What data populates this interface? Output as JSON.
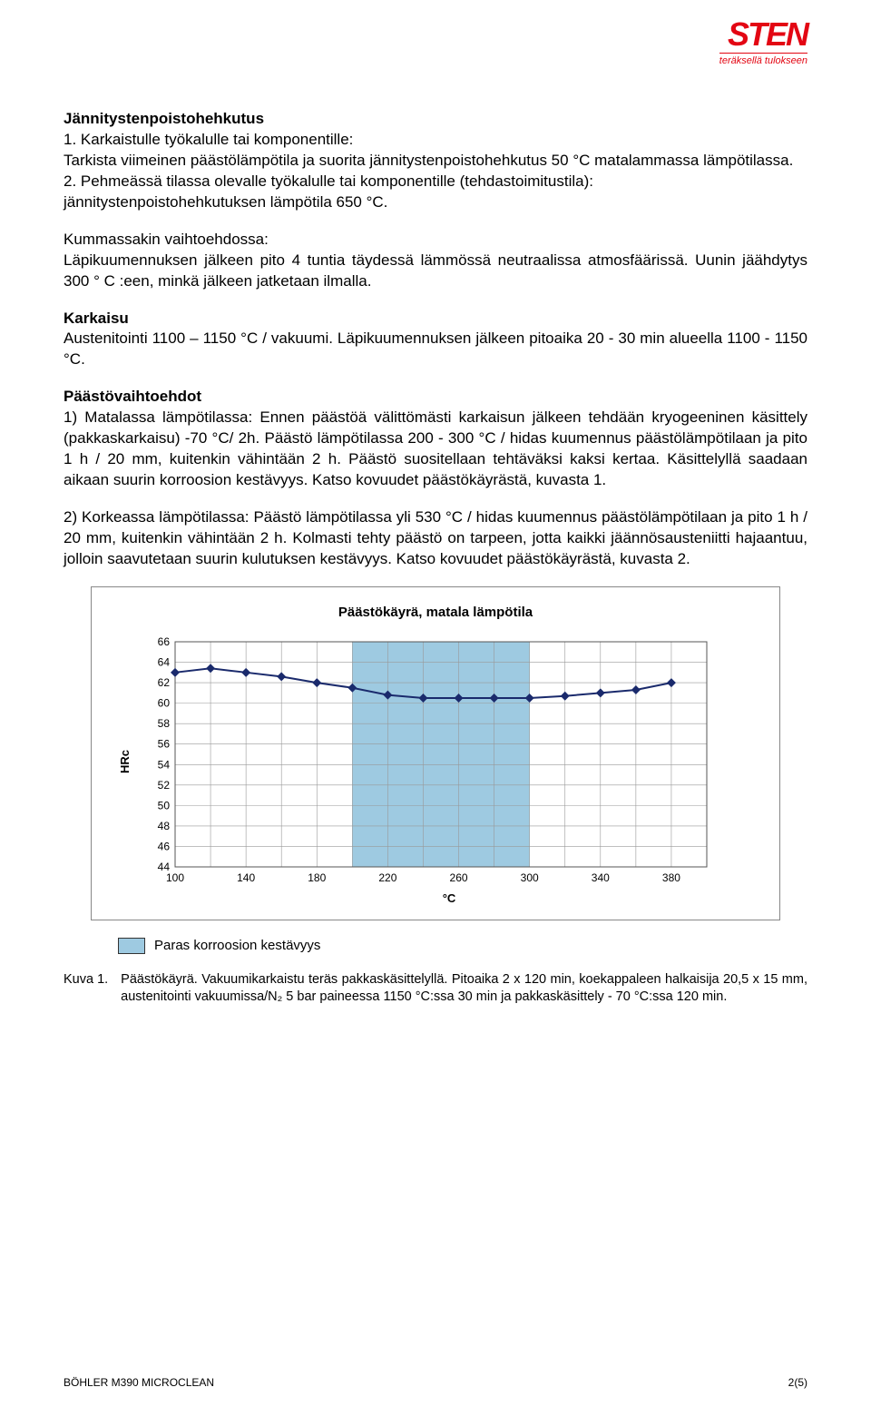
{
  "logo": {
    "main": "STEN",
    "sub": "teräksellä tulokseen"
  },
  "headings": {
    "jp": "Jännitystenpoistohehkutus",
    "karkaisu": "Karkaisu",
    "paasto": "Päästövaihtoehdot"
  },
  "para": {
    "jp1_a": "1. Karkaistulle työkalulle tai komponentille:",
    "jp1_b": "Tarkista viimeinen päästölämpötila ja suorita jännitystenpoistohehkutus 50 °C matalammassa lämpötilassa.",
    "jp2_a": "2. Pehmeässä tilassa olevalle työkalulle tai komponentille (tehdastoimitustila):",
    "jp2_b": "jännitystenpoistohehkutuksen lämpötila 650 °C.",
    "jp3_a": "Kummassakin vaihtoehdossa:",
    "jp3_b": "Läpikuumennuksen jälkeen pito 4 tuntia täydessä lämmössä neutraalissa atmosfäärissä. Uunin jäähdytys 300 ° C :een, minkä jälkeen jatketaan ilmalla.",
    "karkaisu": "Austenitointi 1100 – 1150 °C / vakuumi. Läpikuumennuksen jälkeen pitoaika 20 - 30 min alueella 1100 - 1150 °C.",
    "paasto1": "1) Matalassa lämpötilassa: Ennen päästöä välittömästi karkaisun jälkeen tehdään kryogeeninen käsittely (pakkaskarkaisu) -70 °C/ 2h. Päästö lämpötilassa 200 - 300 °C / hidas kuumennus päästölämpötilaan ja pito 1 h / 20 mm, kuitenkin vähintään 2 h. Päästö suositellaan tehtäväksi kaksi kertaa. Käsittelyllä saadaan aikaan suurin korroosion kestävyys. Katso kovuudet päästökäyrästä, kuvasta 1.",
    "paasto2": "2) Korkeassa lämpötilassa: Päästö lämpötilassa yli 530 °C / hidas kuumennus päästölämpötilaan ja pito 1 h / 20 mm, kuitenkin vähintään 2 h. Kolmasti tehty päästö on tarpeen, jotta kaikki jäännösausteniitti hajaantuu, jolloin saavutetaan suurin kulutuksen kestävyys. Katso kovuudet päästökäyrästä, kuvasta 2."
  },
  "chart": {
    "type": "line",
    "title": "Päästökäyrä, matala lämpötila",
    "y_label": "HRc",
    "x_label": "°C",
    "y_ticks": [
      44,
      46,
      48,
      50,
      52,
      54,
      56,
      58,
      60,
      62,
      64,
      66
    ],
    "x_ticks": [
      100,
      140,
      180,
      220,
      260,
      300,
      340,
      380
    ],
    "ylim": [
      44,
      66
    ],
    "xlim": [
      100,
      400
    ],
    "highlight_band_x": [
      200,
      300
    ],
    "highlight_color": "#9ecae1",
    "highlight_opacity": 1,
    "grid_color": "#999999",
    "background": "#ffffff",
    "line_color": "#1a2a6c",
    "line_width": 2,
    "marker": "diamond",
    "marker_size": 6,
    "marker_fill": "#1a2a6c",
    "points": [
      {
        "x": 100,
        "y": 63.0
      },
      {
        "x": 120,
        "y": 63.4
      },
      {
        "x": 140,
        "y": 63.0
      },
      {
        "x": 160,
        "y": 62.6
      },
      {
        "x": 180,
        "y": 62.0
      },
      {
        "x": 200,
        "y": 61.5
      },
      {
        "x": 220,
        "y": 60.8
      },
      {
        "x": 240,
        "y": 60.5
      },
      {
        "x": 260,
        "y": 60.5
      },
      {
        "x": 280,
        "y": 60.5
      },
      {
        "x": 300,
        "y": 60.5
      },
      {
        "x": 320,
        "y": 60.7
      },
      {
        "x": 340,
        "y": 61.0
      },
      {
        "x": 360,
        "y": 61.3
      },
      {
        "x": 380,
        "y": 62.0
      }
    ]
  },
  "legend": {
    "swatch_color": "#9ecae1",
    "label": "Paras korroosion kestävyys"
  },
  "caption": {
    "label": "Kuva 1.",
    "text": "Päästökäyrä. Vakuumikarkaistu teräs pakkaskäsittelyllä. Pitoaika 2 x 120 min, koekappaleen halkaisija 20,5 x 15 mm, austenitointi vakuumissa/N₂ 5 bar paineessa 1150 °C:ssa 30 min ja pakkaskäsittely - 70 °C:ssa 120 min."
  },
  "footer": {
    "left": "BÖHLER M390 MICROCLEAN",
    "right": "2(5)"
  }
}
